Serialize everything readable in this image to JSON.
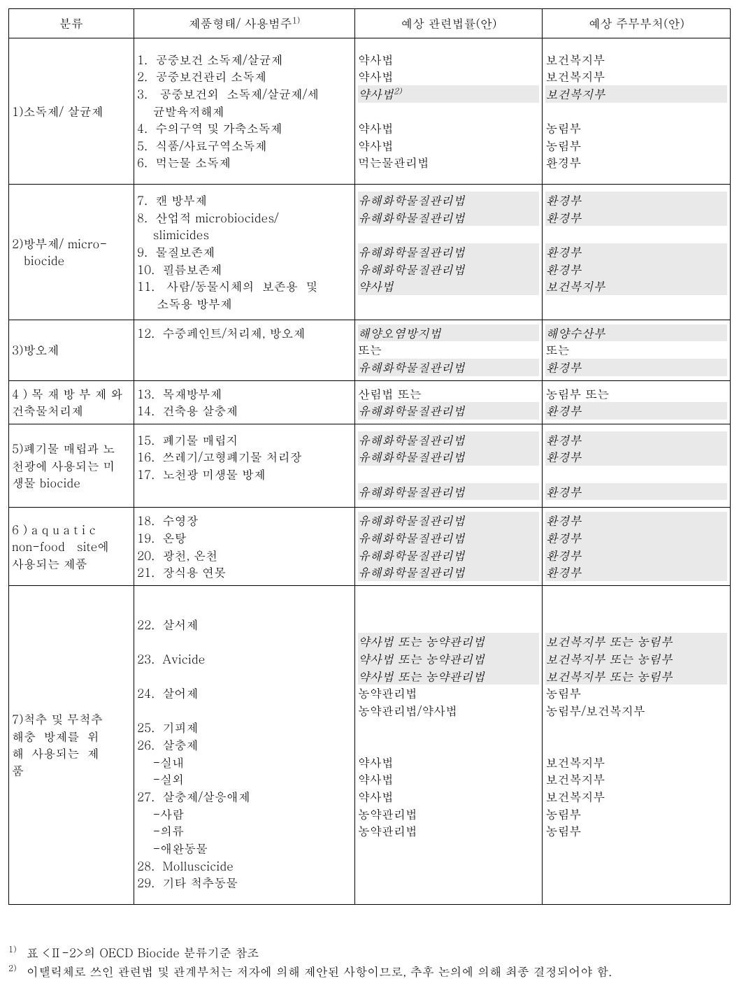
{
  "headers": {
    "c1": "분류",
    "c2": "제품형태/ 사용범주",
    "c2_sup": "1)",
    "c3": "예상 관련법률(안)",
    "c4": "예상 주무부처(안)"
  },
  "rows": [
    {
      "cat": [
        {
          "t": "1)소독제/ 살균제"
        }
      ],
      "cat_valign": "middle",
      "form": [
        {
          "t": "1.  공중보건 소독제/살균제"
        },
        {
          "t": "2.  공중보건관리 소독제"
        },
        {
          "t": "3.   공중보건외  소독제/살균제/세"
        },
        {
          "t": "    균발육저해제"
        },
        {
          "t": "4.  수의구역 및 가축소독제"
        },
        {
          "t": "5.  식품/사료구역소독제"
        },
        {
          "t": "6.  먹는물 소독제"
        }
      ],
      "law": [
        {
          "t": "약사법"
        },
        {
          "t": "약사법"
        },
        {
          "t": "약사법",
          "italic": true,
          "hl": true,
          "sup": "2)"
        },
        {
          "t": ""
        },
        {
          "t": "약사법"
        },
        {
          "t": "약사법"
        },
        {
          "t": "먹는물관리법"
        }
      ],
      "dept": [
        {
          "t": "보건복지부"
        },
        {
          "t": "보건복지부"
        },
        {
          "t": "보건복지부",
          "italic": true,
          "hl": true
        },
        {
          "t": ""
        },
        {
          "t": "농림부"
        },
        {
          "t": "농림부"
        },
        {
          "t": "환경부"
        }
      ],
      "cls": "tall"
    },
    {
      "cat": [
        {
          "t": "2)방부제/ micro-"
        },
        {
          "t": "   biocide"
        }
      ],
      "cat_valign": "middle",
      "form": [
        {
          "t": "7.  캔 방부제"
        },
        {
          "t": "8.  산업적 microbiocides/"
        },
        {
          "t": "    slimicides"
        },
        {
          "t": "9.  물질보존제"
        },
        {
          "t": "10.  필름보존제"
        },
        {
          "t": "11.   사람/동물시체의  보존용  및"
        },
        {
          "t": "     소독용 방부제"
        }
      ],
      "law": [
        {
          "t": "유해화학물질관리법",
          "italic": true,
          "hl": true
        },
        {
          "t": "유해화학물질관리법",
          "italic": true,
          "hl": true
        },
        {
          "t": ""
        },
        {
          "t": "유해화학물질관리법",
          "italic": true,
          "hl": true
        },
        {
          "t": "유해화학물질관리법",
          "italic": true,
          "hl": true
        },
        {
          "t": "약사법",
          "italic": true,
          "hl": true
        }
      ],
      "dept": [
        {
          "t": "환경부",
          "italic": true,
          "hl": true
        },
        {
          "t": "환경부",
          "italic": true,
          "hl": true
        },
        {
          "t": ""
        },
        {
          "t": "환경부",
          "italic": true,
          "hl": true
        },
        {
          "t": "환경부",
          "italic": true,
          "hl": true
        },
        {
          "t": "보건복지부",
          "italic": true,
          "hl": true
        }
      ],
      "cls": "mid"
    },
    {
      "cat": [
        {
          "t": "3)방오제"
        }
      ],
      "cat_valign": "middle",
      "form": [
        {
          "t": "12.  수중페인트/처리제, 방오제"
        }
      ],
      "law": [
        {
          "t": "해양오염방지법",
          "italic": true,
          "hl": true
        },
        {
          "t": "또는"
        },
        {
          "t": "유해화학물질관리법",
          "italic": true,
          "hl": true
        }
      ],
      "dept": [
        {
          "t": "해양수산부",
          "italic": true,
          "hl": true
        },
        {
          "t": "또는"
        },
        {
          "t": "환경부",
          "italic": true,
          "hl": true
        }
      ]
    },
    {
      "cat": [
        {
          "t": "4 ) 목 재 방 부 제 와"
        },
        {
          "t": "건축물처리제"
        }
      ],
      "cat_valign": "middle",
      "form": [
        {
          "t": "13.  목재방부제"
        },
        {
          "t": "14.  건축용 살충제"
        }
      ],
      "law": [
        {
          "t": "산림법 또는"
        },
        {
          "t": "유해화학물질관리법",
          "italic": true,
          "hl": true
        }
      ],
      "dept": [
        {
          "t": "농림부 또는"
        },
        {
          "t": "환경부",
          "italic": true,
          "hl": true
        }
      ]
    },
    {
      "cat": [
        {
          "t": "5)폐기물 매립과 노"
        },
        {
          "t": "천광에 사용되는 미"
        },
        {
          "t": "생물 biocide"
        }
      ],
      "cat_valign": "middle",
      "form": [
        {
          "t": "15.  폐기물 매립지"
        },
        {
          "t": "16.  쓰레기/고형폐기물 처리장"
        },
        {
          "t": "17.  노천광 미생물 방제"
        }
      ],
      "law": [
        {
          "t": "유해화학물질관리법",
          "italic": true,
          "hl": true
        },
        {
          "t": "유해화학물질관리법",
          "italic": true,
          "hl": true
        },
        {
          "t": ""
        },
        {
          "t": "유해화학물질관리법",
          "italic": true,
          "hl": true
        }
      ],
      "dept": [
        {
          "t": "환경부",
          "italic": true,
          "hl": true
        },
        {
          "t": "환경부",
          "italic": true,
          "hl": true
        },
        {
          "t": ""
        },
        {
          "t": "환경부",
          "italic": true,
          "hl": true
        }
      ],
      "cls": "mid"
    },
    {
      "cat": [
        {
          "t": "6 ) a q u a t i c"
        },
        {
          "t": "non-food   site에"
        },
        {
          "t": "사용되는 제품"
        }
      ],
      "cat_valign": "middle",
      "form": [
        {
          "t": "18.  수영장"
        },
        {
          "t": "19.  온탕"
        },
        {
          "t": "20.  광천, 온천"
        },
        {
          "t": "21.  장식용 연못"
        }
      ],
      "law": [
        {
          "t": "유해화학물질관리법",
          "italic": true,
          "hl": true
        },
        {
          "t": "유해화학물질관리법",
          "italic": true,
          "hl": true
        },
        {
          "t": "유해화학물질관리법",
          "italic": true,
          "hl": true
        },
        {
          "t": "유해화학물질관리법",
          "italic": true,
          "hl": true
        }
      ],
      "dept": [
        {
          "t": "환경부",
          "italic": true,
          "hl": true
        },
        {
          "t": "환경부",
          "italic": true,
          "hl": true
        },
        {
          "t": "환경부",
          "italic": true,
          "hl": true
        },
        {
          "t": "환경부",
          "italic": true,
          "hl": true
        }
      ]
    },
    {
      "cat": [
        {
          "t": "7)척추 및 무척추"
        },
        {
          "t": "해충  방제를  위"
        },
        {
          "t": "해  사용되는  제"
        },
        {
          "t": "품"
        }
      ],
      "cat_valign": "middle",
      "form": [
        {
          "t": ""
        },
        {
          "t": "22.  살서제"
        },
        {
          "t": ""
        },
        {
          "t": "23.  Avicide"
        },
        {
          "t": ""
        },
        {
          "t": "24.  살어제"
        },
        {
          "t": ""
        },
        {
          "t": "25.  기피제"
        },
        {
          "t": "26.  살충제"
        },
        {
          "t": "    -실내"
        },
        {
          "t": "    -실외"
        },
        {
          "t": "27.  살충제/살응애제"
        },
        {
          "t": "    -사람"
        },
        {
          "t": "    -의류"
        },
        {
          "t": "    -애완동물"
        },
        {
          "t": "28.  Molluscicide"
        },
        {
          "t": "29.  기타 척추동물"
        }
      ],
      "law": [
        {
          "t": ""
        },
        {
          "t": ""
        },
        {
          "t": "약사법 또는 농약관리법",
          "italic": true,
          "hl": true
        },
        {
          "t": "약사법 또는 농약관리법",
          "italic": true,
          "hl": true
        },
        {
          "t": "약사법 또는 농약관리법",
          "italic": true,
          "hl": true
        },
        {
          "t": "농약관리법"
        },
        {
          "t": "농약관리법/약사법"
        },
        {
          "t": ""
        },
        {
          "t": ""
        },
        {
          "t": "약사법"
        },
        {
          "t": "약사법"
        },
        {
          "t": "약사법"
        },
        {
          "t": "농약관리법"
        },
        {
          "t": "농약관리법"
        }
      ],
      "dept": [
        {
          "t": ""
        },
        {
          "t": ""
        },
        {
          "t": "보건복지부 또는 농림부",
          "italic": true,
          "hl": true
        },
        {
          "t": "보건복지부 또는 농림부",
          "italic": true,
          "hl": true
        },
        {
          "t": "보건복지부 또는 농림부",
          "italic": true,
          "hl": true
        },
        {
          "t": "농림부"
        },
        {
          "t": "농림부/보건복지부"
        },
        {
          "t": ""
        },
        {
          "t": ""
        },
        {
          "t": "보건복지부"
        },
        {
          "t": "보건복지부"
        },
        {
          "t": "보건복지부"
        },
        {
          "t": "농림부"
        },
        {
          "t": "농림부"
        }
      ],
      "cls": "tall"
    }
  ],
  "footnotes": {
    "f1_mark": "1)",
    "f1_text": "표 <Ⅱ-2>의 OECD Biocide 분류기준 참조",
    "f2_mark": "2)",
    "f2_text": "이탤릭체로 쓰인 관련법 및 관계부처는 저자에 의해 제안된 사항이므로, 추후 논의에 의해 최종 결정되어야 함."
  }
}
